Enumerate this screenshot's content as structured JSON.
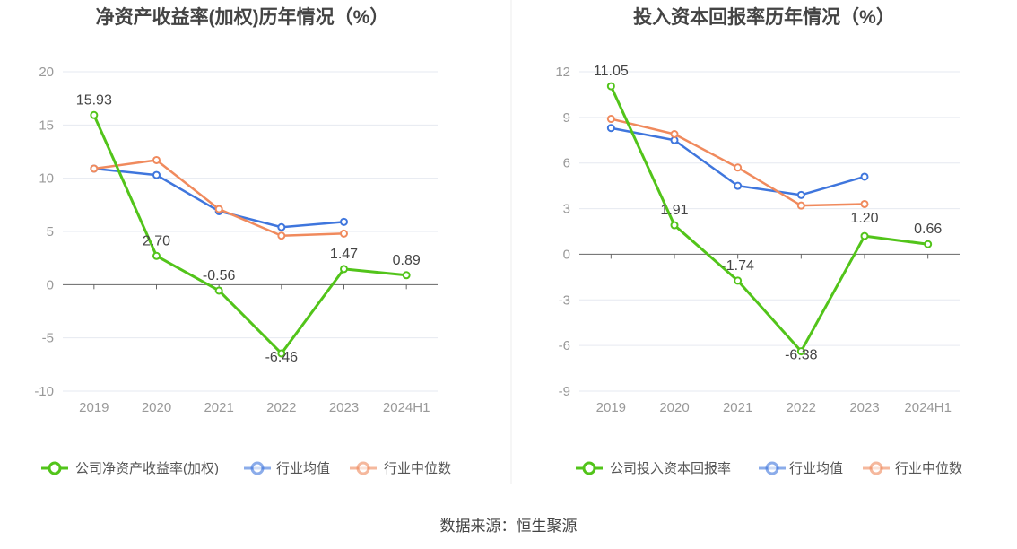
{
  "source_label": "数据来源：恒生聚源",
  "colors": {
    "company": "#52c41a",
    "industry_avg": "#3f76dd",
    "industry_median": "#f08a5d",
    "grid": "#e6e9f0",
    "axis": "#666666",
    "tick_text": "#999999",
    "title_text": "#444444",
    "label_text": "#444444"
  },
  "chart_data": [
    {
      "type": "line",
      "title": "净资产收益率(加权)历年情况（%）",
      "categories": [
        "2019",
        "2020",
        "2021",
        "2022",
        "2023",
        "2024H1"
      ],
      "yticks": [
        20,
        15,
        10,
        5,
        0,
        -5,
        -10
      ],
      "ylim": [
        -10,
        20
      ],
      "grid": true,
      "legend_position": "bottom",
      "series": [
        {
          "name": "公司净资产收益率(加权)",
          "role": "company",
          "values": [
            15.93,
            2.7,
            -0.56,
            -6.46,
            1.47,
            0.89
          ],
          "labels": [
            "15.93",
            "2.70",
            "-0.56",
            "-6.46",
            "1.47",
            "0.89"
          ]
        },
        {
          "name": "行业均值",
          "role": "industry_avg",
          "values": [
            10.9,
            10.3,
            6.9,
            5.4,
            5.9,
            null
          ]
        },
        {
          "name": "行业中位数",
          "role": "industry_median",
          "values": [
            10.9,
            11.7,
            7.1,
            4.6,
            4.8,
            null
          ]
        }
      ]
    },
    {
      "type": "line",
      "title": "投入资本回报率历年情况（%）",
      "categories": [
        "2019",
        "2020",
        "2021",
        "2022",
        "2023",
        "2024H1"
      ],
      "yticks": [
        12,
        9,
        6,
        3,
        0,
        -3,
        -6,
        -9
      ],
      "ylim": [
        -9,
        12
      ],
      "grid": true,
      "legend_position": "bottom",
      "series": [
        {
          "name": "公司投入资本回报率",
          "role": "company",
          "values": [
            11.05,
            1.91,
            -1.74,
            -6.38,
            1.2,
            0.66
          ],
          "labels": [
            "11.05",
            "1.91",
            "-1.74",
            "-6.38",
            "1.20",
            "0.66"
          ]
        },
        {
          "name": "行业均值",
          "role": "industry_avg",
          "values": [
            8.3,
            7.5,
            4.5,
            3.9,
            5.1,
            null
          ]
        },
        {
          "name": "行业中位数",
          "role": "industry_median",
          "values": [
            8.9,
            7.9,
            5.7,
            3.2,
            3.3,
            null
          ]
        }
      ]
    }
  ]
}
